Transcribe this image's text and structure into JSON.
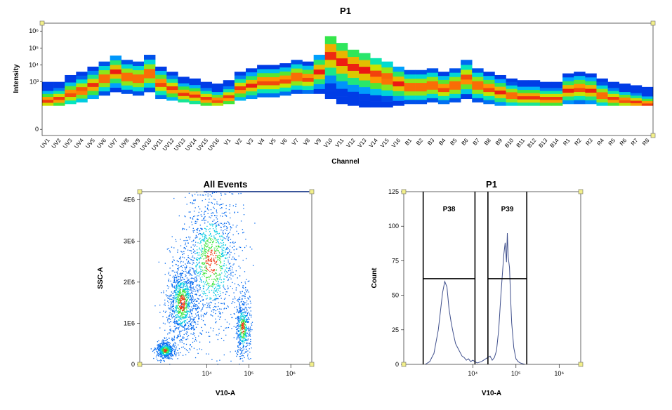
{
  "chart_data": [
    {
      "type": "heatmap",
      "title": "P1",
      "xlabel": "Channel",
      "ylabel": "Intensity",
      "y_tick_labels": [
        "10⁶",
        "10⁵",
        "10⁴",
        "10³",
        "0"
      ],
      "channels": [
        "UV1",
        "UV2",
        "UV3",
        "UV4",
        "UV5",
        "UV6",
        "UV7",
        "UV8",
        "UV9",
        "UV10",
        "UV11",
        "UV12",
        "UV13",
        "UV14",
        "UV15",
        "UV16",
        "V1",
        "V2",
        "V3",
        "V4",
        "V5",
        "V6",
        "V7",
        "V8",
        "V9",
        "V10",
        "V11",
        "V12",
        "V13",
        "V14",
        "V15",
        "V16",
        "B1",
        "B2",
        "B3",
        "B4",
        "B5",
        "B6",
        "B7",
        "B8",
        "B9",
        "B10",
        "B11",
        "B12",
        "B13",
        "B14",
        "R1",
        "R2",
        "R3",
        "R4",
        "R5",
        "R6",
        "R7",
        "R8"
      ],
      "band_top": [
        3.0,
        3.0,
        3.4,
        3.6,
        3.9,
        4.2,
        4.55,
        4.3,
        4.2,
        4.6,
        3.9,
        3.6,
        3.3,
        3.2,
        3.0,
        2.9,
        3.1,
        3.6,
        3.8,
        4.0,
        4.0,
        4.1,
        4.3,
        4.2,
        4.6,
        5.7,
        5.3,
        4.9,
        4.7,
        4.4,
        4.2,
        3.9,
        3.7,
        3.7,
        3.8,
        3.6,
        3.8,
        4.3,
        3.8,
        3.6,
        3.4,
        3.2,
        3.1,
        3.1,
        3.0,
        3.0,
        3.5,
        3.6,
        3.5,
        3.2,
        3.0,
        2.9,
        2.8,
        2.7
      ],
      "band_bottom": [
        1.6,
        1.6,
        1.7,
        1.8,
        2.0,
        2.2,
        2.4,
        2.3,
        2.2,
        2.4,
        2.0,
        1.9,
        1.8,
        1.7,
        1.6,
        1.6,
        1.7,
        1.9,
        2.0,
        2.1,
        2.1,
        2.2,
        2.3,
        2.3,
        2.3,
        2.0,
        1.7,
        1.6,
        1.5,
        1.5,
        1.5,
        1.6,
        1.7,
        1.7,
        1.8,
        1.7,
        1.8,
        2.0,
        1.8,
        1.7,
        1.6,
        1.6,
        1.6,
        1.6,
        1.6,
        1.6,
        1.7,
        1.7,
        1.7,
        1.6,
        1.6,
        1.6,
        1.6,
        1.6
      ],
      "band_peak": [
        1.9,
        2.0,
        2.3,
        2.5,
        2.8,
        3.2,
        3.6,
        3.3,
        3.2,
        3.5,
        2.9,
        2.6,
        2.3,
        2.2,
        2.0,
        1.9,
        2.1,
        2.6,
        2.8,
        3.0,
        3.0,
        3.1,
        3.3,
        3.2,
        3.6,
        4.6,
        4.2,
        3.9,
        3.7,
        3.4,
        3.2,
        2.9,
        2.7,
        2.7,
        2.8,
        2.6,
        2.8,
        3.2,
        2.8,
        2.6,
        2.4,
        2.2,
        2.1,
        2.1,
        2.0,
        2.0,
        2.5,
        2.6,
        2.5,
        2.2,
        2.0,
        1.9,
        1.8,
        1.7
      ],
      "ylim_log": [
        0,
        6.3
      ]
    },
    {
      "type": "scatter",
      "title": "All Events",
      "xlabel": "V10-A",
      "ylabel": "SSC-A",
      "x_tick_labels": [
        "10⁴",
        "10⁵",
        "10⁶"
      ],
      "y_tick_labels": [
        "4E6",
        "3E6",
        "2E6",
        "1E6",
        "0"
      ],
      "ylim": [
        0,
        4200000
      ],
      "populations": [
        {
          "x_log": 3.0,
          "y": 350000,
          "sx": 0.12,
          "sy": 110000,
          "n": 520
        },
        {
          "x_log": 3.4,
          "y": 1500000,
          "sx": 0.18,
          "sy": 500000,
          "n": 1100
        },
        {
          "x_log": 4.85,
          "y": 900000,
          "sx": 0.09,
          "sy": 380000,
          "n": 550
        },
        {
          "x_log": 4.1,
          "y": 2500000,
          "sx": 0.35,
          "sy": 850000,
          "n": 1300
        }
      ]
    },
    {
      "type": "line",
      "title": "P1",
      "xlabel": "V10-A",
      "ylabel": "Count",
      "x_tick_labels": [
        "10⁴",
        "10⁵",
        "10⁶"
      ],
      "y_tick_labels": [
        "125",
        "100",
        "75",
        "50",
        "25",
        "0"
      ],
      "ylim": [
        0,
        125
      ],
      "x_log": [
        2.9,
        3.0,
        3.1,
        3.2,
        3.3,
        3.35,
        3.4,
        3.45,
        3.5,
        3.55,
        3.6,
        3.65,
        3.7,
        3.75,
        3.8,
        3.85,
        3.9,
        3.95,
        4.0,
        4.05,
        4.1,
        4.2,
        4.3,
        4.4,
        4.45,
        4.5,
        4.55,
        4.6,
        4.65,
        4.7,
        4.72,
        4.75,
        4.78,
        4.8,
        4.82,
        4.85,
        4.88,
        4.9,
        4.95,
        5.0,
        5.05,
        5.1,
        5.2
      ],
      "counts": [
        0,
        2,
        8,
        25,
        52,
        60,
        56,
        40,
        30,
        22,
        15,
        12,
        9,
        6,
        5,
        3,
        4,
        2,
        3,
        2,
        1,
        2,
        4,
        6,
        3,
        5,
        10,
        25,
        50,
        72,
        80,
        88,
        74,
        95,
        78,
        70,
        45,
        30,
        12,
        4,
        2,
        1,
        0
      ],
      "gates": [
        {
          "name": "P38",
          "x_min": 2.85,
          "x_max": 4.05,
          "level": 62
        },
        {
          "name": "P39",
          "x_min": 4.35,
          "x_max": 5.25,
          "level": 62
        }
      ]
    }
  ]
}
